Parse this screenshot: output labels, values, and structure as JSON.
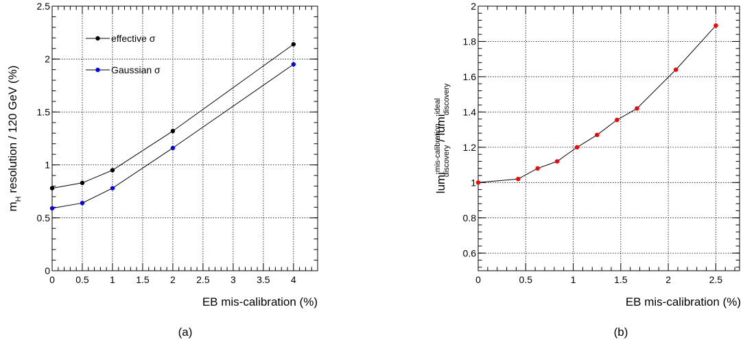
{
  "chart_data": [
    {
      "type": "line",
      "panel_label": "(a)",
      "xlabel": "EB mis-calibration (%)",
      "ylabel_parts": [
        "m",
        "H",
        " resolution / 120 GeV (%)"
      ],
      "xlim": [
        0,
        4.4
      ],
      "ylim": [
        0,
        2.5
      ],
      "xticks": [
        0,
        0.5,
        1,
        1.5,
        2,
        2.5,
        3,
        3.5,
        4
      ],
      "xtick_labels": [
        "0",
        "0.5",
        "1",
        "1.5",
        "2",
        "2.5",
        "3",
        "3.5",
        "4"
      ],
      "yticks": [
        0,
        0.5,
        1,
        1.5,
        2,
        2.5
      ],
      "ytick_labels": [
        "0",
        "0.5",
        "1",
        "1.5",
        "2",
        "2.5"
      ],
      "grid": true,
      "legend_placement": "top-left",
      "series": [
        {
          "name": "effective σ",
          "color": "#000000",
          "x": [
            0,
            0.5,
            1,
            2,
            4
          ],
          "y": [
            0.78,
            0.83,
            0.95,
            1.32,
            2.14
          ]
        },
        {
          "name": "Gaussian σ",
          "color": "#0000ff",
          "x": [
            0,
            0.5,
            1,
            2,
            4
          ],
          "y": [
            0.59,
            0.64,
            0.78,
            1.16,
            1.95
          ]
        }
      ]
    },
    {
      "type": "line",
      "panel_label": "(b)",
      "xlabel": "EB mis-calibration (%)",
      "ylabel_parts": [
        "lumi",
        "mis-calibration",
        "discovery",
        " / lumi",
        "ideal",
        "discovery"
      ],
      "xlim": [
        0,
        2.75
      ],
      "ylim": [
        0.5,
        2.0
      ],
      "xticks": [
        0,
        0.5,
        1,
        1.5,
        2,
        2.5
      ],
      "xtick_labels": [
        "0",
        "0.5",
        "1",
        "1.5",
        "2",
        "2.5"
      ],
      "yticks": [
        0.6,
        0.8,
        1.0,
        1.2,
        1.4,
        1.6,
        1.8,
        2.0
      ],
      "ytick_labels": [
        "0.6",
        "0.8",
        "1",
        "1.2",
        "1.4",
        "1.6",
        "1.8",
        "2"
      ],
      "grid": true,
      "series": [
        {
          "color": "#ff0000",
          "x": [
            0,
            0.42,
            0.625,
            0.83,
            1.04,
            1.25,
            1.46,
            1.67,
            2.08,
            2.5
          ],
          "y": [
            1.0,
            1.02,
            1.08,
            1.12,
            1.2,
            1.27,
            1.355,
            1.42,
            1.64,
            1.89
          ]
        }
      ]
    }
  ]
}
